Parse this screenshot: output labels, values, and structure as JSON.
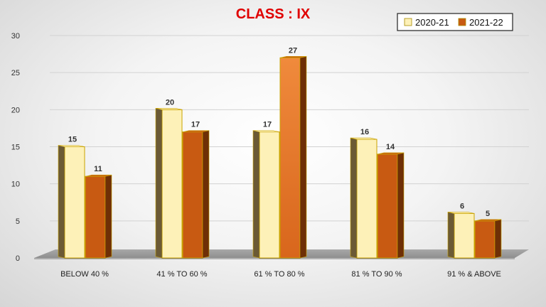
{
  "chart_data": {
    "type": "bar",
    "title": "CLASS : IX",
    "categories": [
      "BELOW 40 %",
      "41 % TO 60 %",
      "61 % TO 80 %",
      "81 % TO 90 %",
      "91 % & ABOVE"
    ],
    "series": [
      {
        "name": "2020-21",
        "values": [
          15,
          20,
          17,
          16,
          6
        ],
        "color": "#fdf1b8",
        "side_color": "#6b5a35",
        "edge_color": "#c9a200"
      },
      {
        "name": "2021-22",
        "values": [
          11,
          17,
          27,
          14,
          5
        ],
        "color": "#c85a12",
        "side_color": "#6e2f06",
        "edge_color": "#c9a200"
      }
    ],
    "ylim": [
      0,
      30
    ],
    "yticks": [
      0,
      5,
      10,
      15,
      20,
      25,
      30
    ],
    "grid": true,
    "legend_position": "top-right",
    "style": "3d-columns"
  }
}
